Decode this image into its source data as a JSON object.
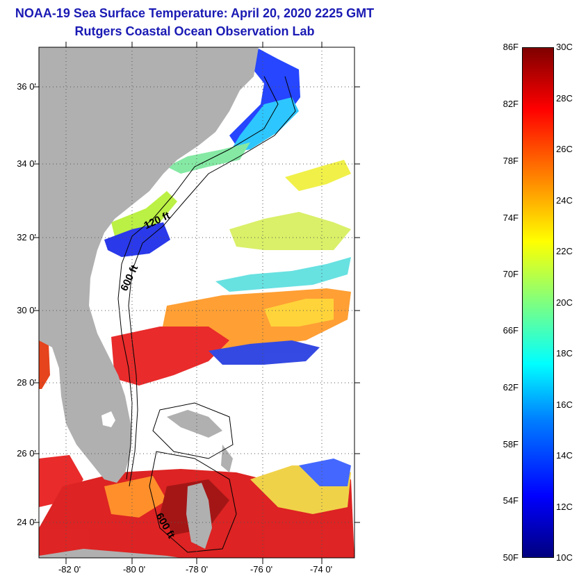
{
  "title": {
    "line1": "NOAA-19 Sea Surface Temperature:  April 20, 2020 2225 GMT",
    "line2": "Rutgers Coastal Ocean Observation Lab"
  },
  "axes": {
    "y_ticks": [
      {
        "value": 36,
        "label": "36 0'"
      },
      {
        "value": 34,
        "label": "34 0'"
      },
      {
        "value": 32,
        "label": "32 0'"
      },
      {
        "value": 30,
        "label": "30 0'"
      },
      {
        "value": 28,
        "label": "28 0'"
      },
      {
        "value": 26,
        "label": "26 0'"
      },
      {
        "value": 24,
        "label": "24 0'"
      }
    ],
    "x_ticks": [
      {
        "value": -82,
        "label": "-82 0'"
      },
      {
        "value": -80,
        "label": "-80 0'"
      },
      {
        "value": -78,
        "label": "-78 0'"
      },
      {
        "value": -76,
        "label": "-76 0'"
      },
      {
        "value": -74,
        "label": "-74 0'"
      }
    ],
    "lon_range": [
      -83,
      -73
    ],
    "lat_range": [
      23,
      37
    ]
  },
  "isobath_labels": [
    "120 ft",
    "600 ft",
    "600 ft"
  ],
  "colorbar": {
    "fahrenheit": [
      "86F",
      "82F",
      "78F",
      "74F",
      "70F",
      "66F",
      "62F",
      "58F",
      "54F",
      "50F"
    ],
    "celsius": [
      "30C",
      "28C",
      "26C",
      "24C",
      "22C",
      "20C",
      "18C",
      "16C",
      "14C",
      "12C",
      "10C"
    ],
    "range_c": [
      10,
      30
    ]
  },
  "colors": {
    "land": "#b0b0b0",
    "title": "#1a1ab4"
  }
}
